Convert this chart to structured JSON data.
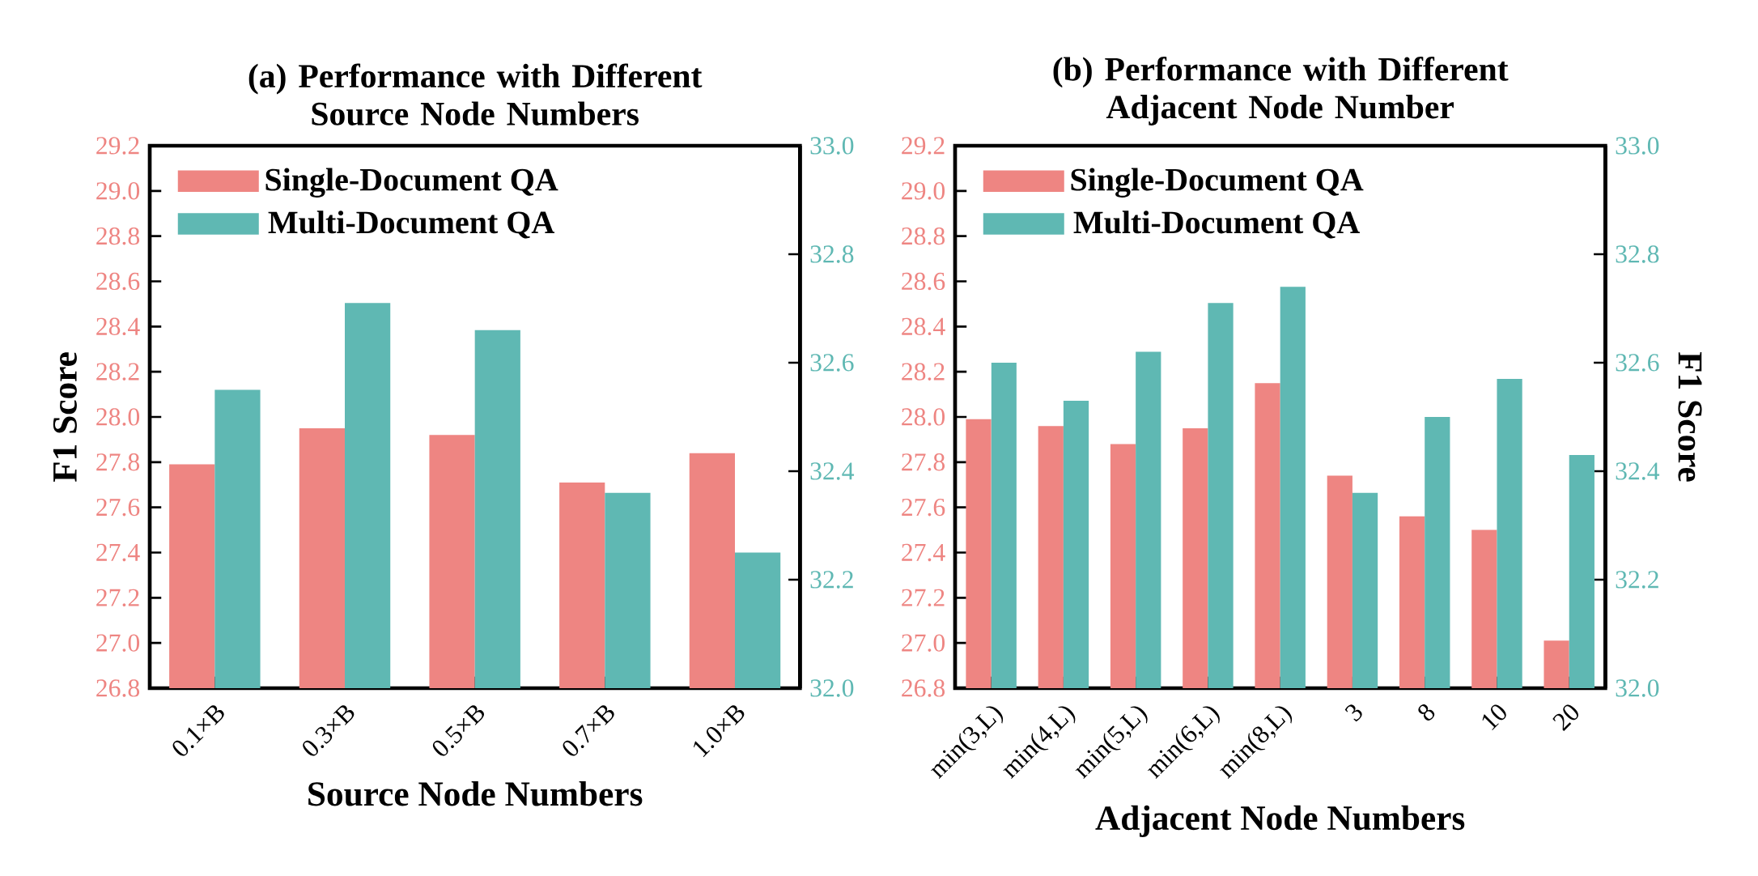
{
  "chart_data": [
    {
      "type": "bar",
      "title": "(a) Performance with Different Source Node Numbers",
      "xlabel": "Source Node Numbers",
      "ylabel": "F1 Score",
      "legend": "top left",
      "categories": [
        "0.1×B",
        "0.3×B",
        "0.5×B",
        "0.7×B",
        "1.0×B"
      ],
      "series": [
        {
          "name": "Single-Document QA",
          "color": "#ee8582",
          "values": [
            27.79,
            27.95,
            27.92,
            27.71,
            27.84
          ]
        },
        {
          "name": "Multi-Document QA",
          "color": "#5fb8b3",
          "axis": "y2",
          "values": [
            32.55,
            32.71,
            32.66,
            32.36,
            32.25
          ]
        }
      ],
      "ylim": [
        26.8,
        29.2
      ],
      "yticks": [
        {
          "value": 26.8,
          "label": "26.8"
        },
        {
          "value": 27.0,
          "label": "27.0"
        },
        {
          "value": 27.2,
          "label": "27.2"
        },
        {
          "value": 27.4,
          "label": "27.4"
        },
        {
          "value": 27.6,
          "label": "27.6"
        },
        {
          "value": 27.8,
          "label": "27.8"
        },
        {
          "value": 28.0,
          "label": "28.0"
        },
        {
          "value": 28.2,
          "label": "28.2"
        },
        {
          "value": 28.4,
          "label": "28.4"
        },
        {
          "value": 28.6,
          "label": "28.6"
        },
        {
          "value": 28.8,
          "label": "28.8"
        },
        {
          "value": 29.0,
          "label": "29.0"
        },
        {
          "value": 29.2,
          "label": "29.2"
        }
      ],
      "y2lim": [
        32.0,
        33.0
      ],
      "y2ticks": [
        {
          "value": 32.0,
          "label": "32.0"
        },
        {
          "value": 32.2,
          "label": "32.2"
        },
        {
          "value": 32.4,
          "label": "32.4"
        },
        {
          "value": 32.6,
          "label": "32.6"
        },
        {
          "value": 32.8,
          "label": "32.8"
        },
        {
          "value": 33.0,
          "label": "33.0"
        }
      ]
    },
    {
      "type": "bar",
      "title": "(b) Performance with Different Adjacent Node Number",
      "xlabel": "Adjacent Node Numbers",
      "y2label": "F1 Score",
      "legend": "top left",
      "categories": [
        "min(3,L)",
        "min(4,L)",
        "min(5,L)",
        "min(6,L)",
        "min(8,L)",
        "3",
        "8",
        "10",
        "20"
      ],
      "series": [
        {
          "name": "Single-Document QA",
          "color": "#ee8582",
          "values": [
            27.99,
            27.96,
            27.88,
            27.95,
            28.15,
            27.74,
            27.56,
            27.5,
            27.01
          ]
        },
        {
          "name": "Multi-Document QA",
          "color": "#5fb8b3",
          "axis": "y2",
          "values": [
            32.6,
            32.53,
            32.62,
            32.71,
            32.74,
            32.36,
            32.5,
            32.57,
            32.43
          ]
        }
      ],
      "ylim": [
        26.8,
        29.2
      ],
      "yticks": [
        {
          "value": 26.8,
          "label": "26.8"
        },
        {
          "value": 27.0,
          "label": "27.0"
        },
        {
          "value": 27.2,
          "label": "27.2"
        },
        {
          "value": 27.4,
          "label": "27.4"
        },
        {
          "value": 27.6,
          "label": "27.6"
        },
        {
          "value": 27.8,
          "label": "27.8"
        },
        {
          "value": 28.0,
          "label": "28.0"
        },
        {
          "value": 28.2,
          "label": "28.2"
        },
        {
          "value": 28.4,
          "label": "28.4"
        },
        {
          "value": 28.6,
          "label": "28.6"
        },
        {
          "value": 28.8,
          "label": "28.8"
        },
        {
          "value": 29.0,
          "label": "29.0"
        },
        {
          "value": 29.2,
          "label": "29.2"
        }
      ],
      "y2lim": [
        32.0,
        33.0
      ],
      "y2ticks": [
        {
          "value": 32.0,
          "label": "32.0"
        },
        {
          "value": 32.2,
          "label": "32.2"
        },
        {
          "value": 32.4,
          "label": "32.4"
        },
        {
          "value": 32.6,
          "label": "32.6"
        },
        {
          "value": 32.8,
          "label": "32.8"
        },
        {
          "value": 33.0,
          "label": "33.0"
        }
      ]
    }
  ]
}
